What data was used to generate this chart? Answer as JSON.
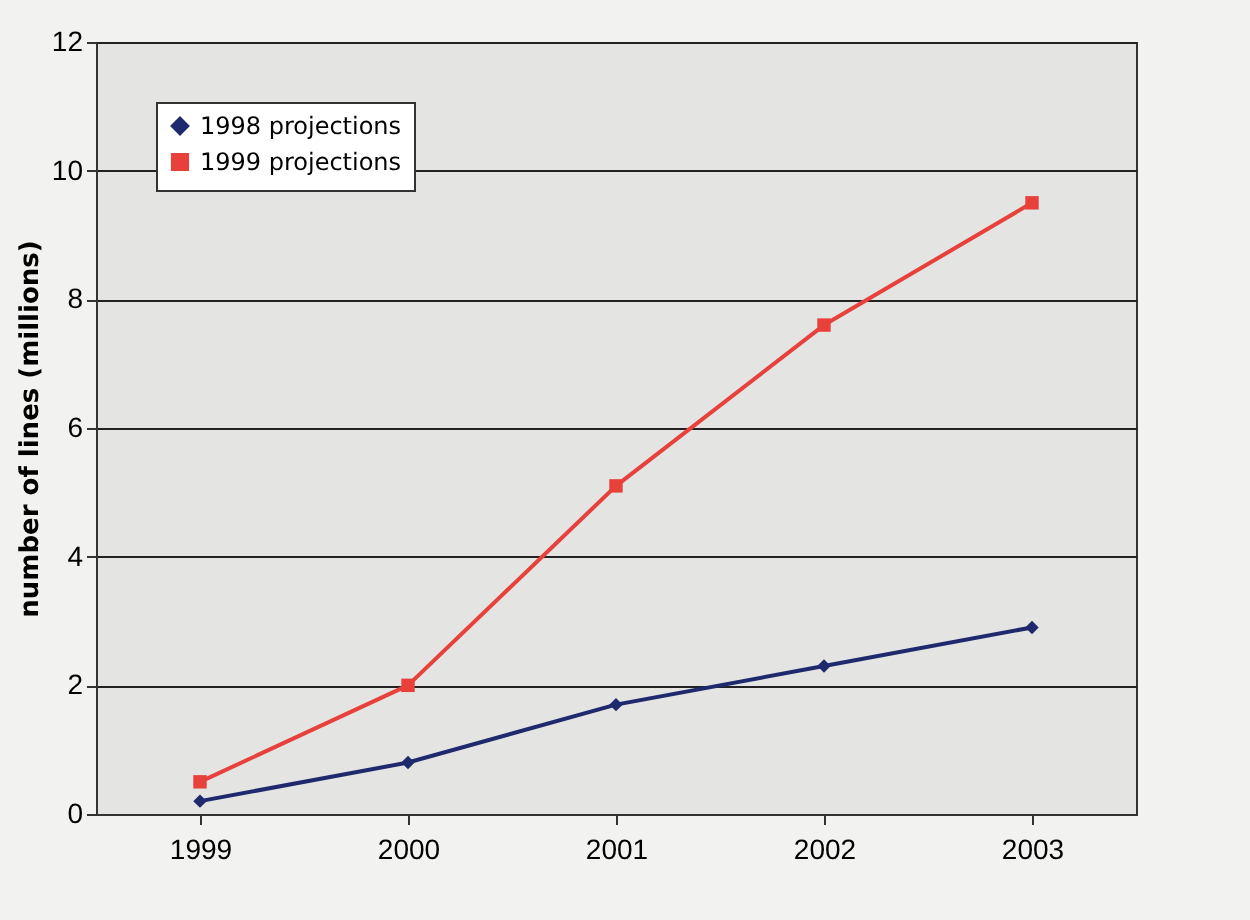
{
  "chart_data": {
    "type": "line",
    "ylabel": "number of lines (millions)",
    "categories": [
      "1999",
      "2000",
      "2001",
      "2002",
      "2003"
    ],
    "series": [
      {
        "name": "1998 projections",
        "color": "#1f2a6e",
        "marker": "diamond",
        "values": [
          0.2,
          0.8,
          1.7,
          2.3,
          2.9
        ]
      },
      {
        "name": "1999 projections",
        "color": "#e8413c",
        "marker": "square",
        "values": [
          0.5,
          2.0,
          5.1,
          7.6,
          9.5
        ]
      }
    ],
    "ylim": [
      0,
      12
    ],
    "yticks": [
      0,
      2,
      4,
      6,
      8,
      10,
      12
    ],
    "grid": "y",
    "legend": "top left",
    "line_style": "solid"
  }
}
